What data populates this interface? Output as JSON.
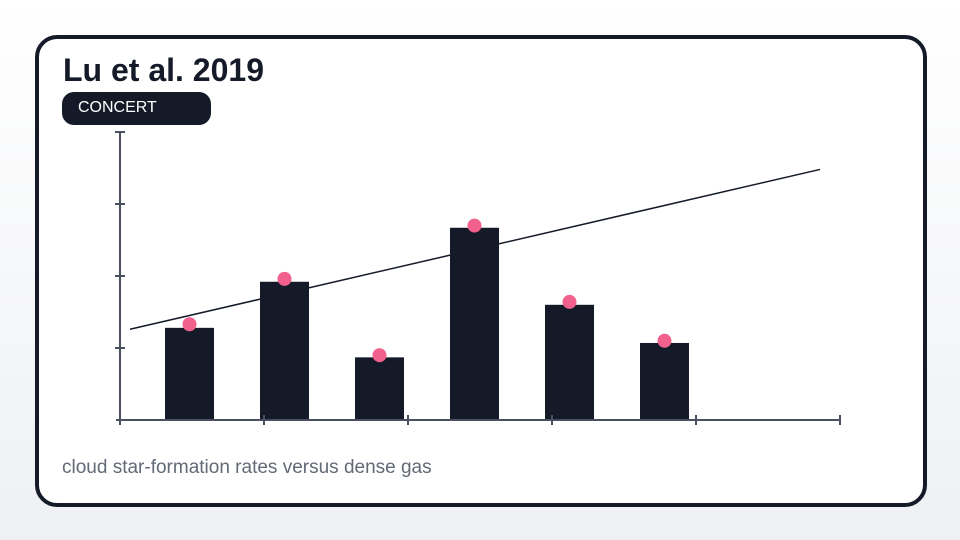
{
  "title": "Lu et al. 2019",
  "badge": "CONCERT",
  "caption": "cloud star-formation rates versus dense gas",
  "colors": {
    "bar": "#141a28",
    "marker": "#f2608e",
    "axis": "#4a5060",
    "trend": "#141a28",
    "card_border": "#141a28"
  },
  "chart_data": {
    "type": "bar",
    "title": "",
    "xlabel": "",
    "ylabel": "",
    "ylim": [
      0,
      4
    ],
    "categories": [
      "",
      "",
      "",
      "",
      "",
      ""
    ],
    "series": [
      {
        "type": "bar",
        "values": [
          1.28,
          1.92,
          0.87,
          2.67,
          1.6,
          1.07
        ]
      },
      {
        "type": "scatter",
        "values": [
          1.33,
          1.96,
          0.9,
          2.7,
          1.64,
          1.1
        ]
      }
    ],
    "trendline": {
      "start": 1.26,
      "end": 3.48
    },
    "y_ticks": 4,
    "x_ticks": 6,
    "grid": false,
    "legend": "none"
  }
}
